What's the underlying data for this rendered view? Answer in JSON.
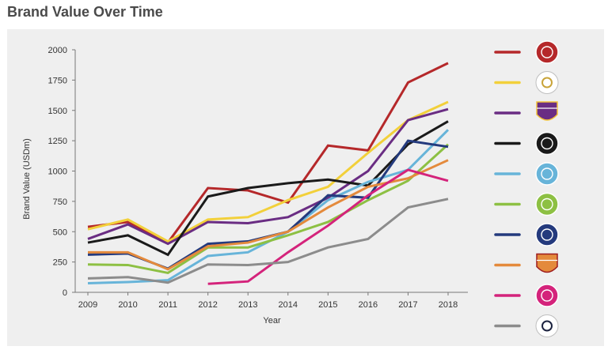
{
  "page": {
    "title": "Brand Value Over Time"
  },
  "chart_data": {
    "type": "line",
    "title": "Brand Value Over Time",
    "xlabel": "Year",
    "ylabel": "Brand Value (USDm)",
    "x": [
      "2009",
      "2010",
      "2011",
      "2012",
      "2013",
      "2014",
      "2015",
      "2016",
      "2017",
      "2018"
    ],
    "ylim": [
      0,
      2000
    ],
    "yticks": [
      0,
      250,
      500,
      750,
      1000,
      1250,
      1500,
      1750,
      2000
    ],
    "grid": false,
    "legend_position": "right",
    "legend_style": "club crests",
    "series": [
      {
        "icon": "manchester-united-crest-icon",
        "color": "#b5282a",
        "values": [
          540,
          580,
          410,
          860,
          840,
          740,
          1210,
          1170,
          1730,
          1890
        ]
      },
      {
        "icon": "real-madrid-crest-icon",
        "color": "#f2d03a",
        "values": [
          520,
          600,
          420,
          600,
          620,
          760,
          870,
          1150,
          1420,
          1570
        ]
      },
      {
        "icon": "barcelona-crest-icon",
        "color": "#6a2d83",
        "values": [
          440,
          560,
          400,
          580,
          570,
          620,
          780,
          1000,
          1420,
          1510
        ]
      },
      {
        "icon": "bayern-munich-crest-icon",
        "color": "#1a1a1a",
        "values": [
          410,
          470,
          310,
          790,
          860,
          900,
          930,
          880,
          1220,
          1410
        ]
      },
      {
        "icon": "manchester-city-crest-icon",
        "color": "#67b4d9",
        "values": [
          75,
          85,
          100,
          300,
          330,
          500,
          760,
          910,
          1010,
          1340
        ]
      },
      {
        "icon": "liverpool-crest-icon",
        "color": "#8dc043",
        "values": [
          230,
          225,
          160,
          370,
          370,
          470,
          580,
          760,
          920,
          1220
        ]
      },
      {
        "icon": "chelsea-crest-icon",
        "color": "#243a7d",
        "values": [
          310,
          320,
          195,
          400,
          420,
          500,
          800,
          780,
          1250,
          1200
        ]
      },
      {
        "icon": "arsenal-crest-icon",
        "color": "#e48a3c",
        "values": [
          330,
          330,
          190,
          380,
          410,
          500,
          700,
          870,
          940,
          1090
        ]
      },
      {
        "icon": "psg-crest-icon",
        "color": "#d4237b",
        "values": [
          null,
          null,
          null,
          70,
          90,
          330,
          550,
          800,
          1010,
          920
        ]
      },
      {
        "icon": "tottenham-crest-icon",
        "color": "#8c8c8c",
        "values": [
          115,
          125,
          80,
          230,
          225,
          250,
          370,
          440,
          700,
          770
        ]
      }
    ]
  }
}
